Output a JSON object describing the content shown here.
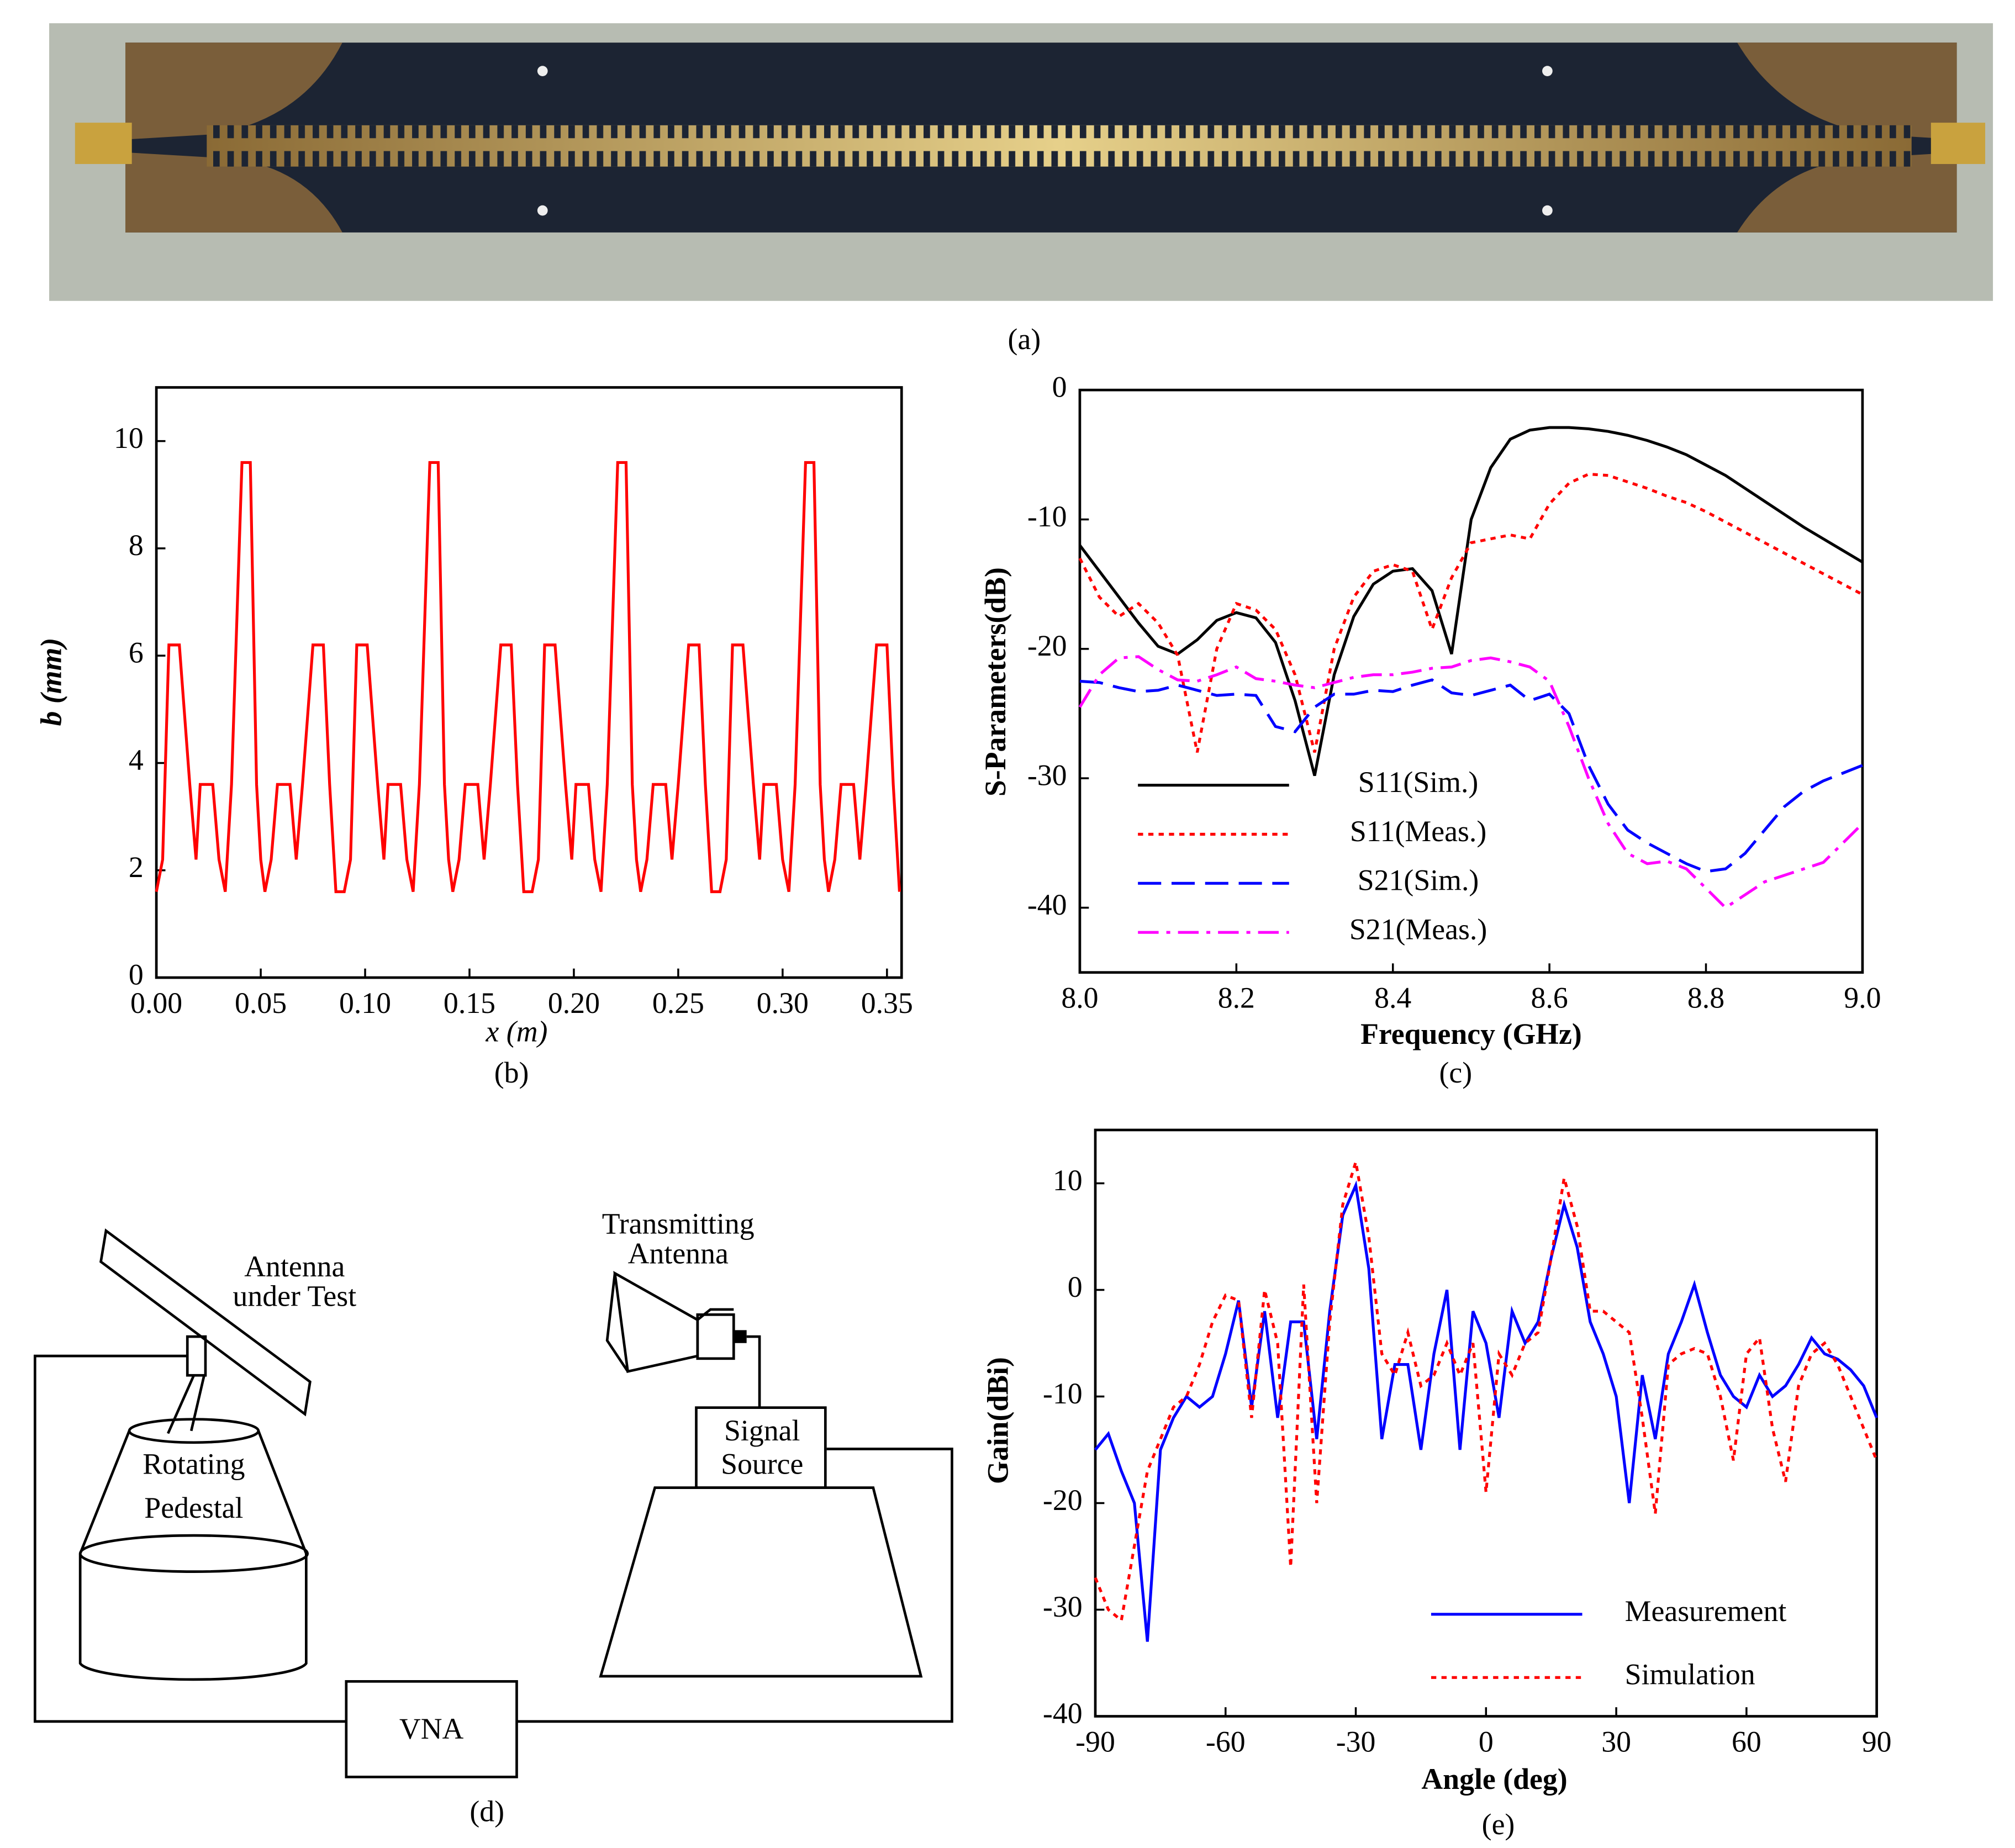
{
  "figure_a": {
    "caption": "(a)"
  },
  "chart_data": [
    {
      "type": "line",
      "caption": "(b)",
      "xlabel": "x (m)",
      "ylabel": "b (mm)",
      "x": [
        0,
        0.003,
        0.006,
        0.011,
        0.016,
        0.019,
        0.021,
        0.027,
        0.03,
        0.033,
        0.036,
        0.041,
        0.045,
        0.048,
        0.05,
        0.052,
        0.055,
        0.058,
        0.064,
        0.067,
        0.07,
        0.075,
        0.08,
        0.083,
        0.086,
        0.09,
        0.093,
        0.096,
        0.101,
        0.106,
        0.109,
        0.111,
        0.117,
        0.12,
        0.123,
        0.126,
        0.131,
        0.135,
        0.138,
        0.14,
        0.142,
        0.145,
        0.148,
        0.154,
        0.157,
        0.16,
        0.165,
        0.17,
        0.173,
        0.176,
        0.18,
        0.183,
        0.186,
        0.191,
        0.196,
        0.199,
        0.201,
        0.207,
        0.21,
        0.213,
        0.216,
        0.221,
        0.225,
        0.228,
        0.23,
        0.232,
        0.235,
        0.238,
        0.244,
        0.247,
        0.25,
        0.255,
        0.26,
        0.263,
        0.266,
        0.27,
        0.273,
        0.276,
        0.281,
        0.286,
        0.289,
        0.291,
        0.297,
        0.3,
        0.303,
        0.306,
        0.311,
        0.315,
        0.318,
        0.32,
        0.322,
        0.325,
        0.328,
        0.334,
        0.337,
        0.34,
        0.345,
        0.35,
        0.353,
        0.356
      ],
      "series": [
        {
          "color": "#ff0000",
          "style": "solid",
          "values": [
            1.6,
            2.2,
            6.2,
            6.2,
            3.6,
            2.2,
            3.6,
            3.6,
            2.2,
            1.6,
            3.6,
            9.6,
            9.6,
            3.6,
            2.2,
            1.6,
            2.2,
            3.6,
            3.6,
            2.2,
            3.6,
            6.2,
            6.2,
            3.6,
            1.6,
            1.6,
            2.2,
            6.2,
            6.2,
            3.6,
            2.2,
            3.6,
            3.6,
            2.2,
            1.6,
            3.6,
            9.6,
            9.6,
            3.6,
            2.2,
            1.6,
            2.2,
            3.6,
            3.6,
            2.2,
            3.6,
            6.2,
            6.2,
            3.6,
            1.6,
            1.6,
            2.2,
            6.2,
            6.2,
            3.6,
            2.2,
            3.6,
            3.6,
            2.2,
            1.6,
            3.6,
            9.6,
            9.6,
            3.6,
            2.2,
            1.6,
            2.2,
            3.6,
            3.6,
            2.2,
            3.6,
            6.2,
            6.2,
            3.6,
            1.6,
            1.6,
            2.2,
            6.2,
            6.2,
            3.6,
            2.2,
            3.6,
            3.6,
            2.2,
            1.6,
            3.6,
            9.6,
            9.6,
            3.6,
            2.2,
            1.6,
            2.2,
            3.6,
            3.6,
            2.2,
            3.6,
            6.2,
            6.2,
            3.6,
            1.6
          ]
        }
      ],
      "xlim": [
        0,
        0.357
      ],
      "ylim": [
        0,
        11
      ],
      "xticks": [
        {
          "value": 0,
          "label": "0.00"
        },
        0.05,
        {
          "value": 0.1,
          "label": "0.10"
        },
        0.15,
        {
          "value": 0.2,
          "label": "0.20"
        },
        0.25,
        {
          "value": 0.3,
          "label": "0.30"
        },
        0.35
      ],
      "yticks": [
        0,
        2,
        4,
        6,
        8,
        10
      ]
    },
    {
      "type": "line",
      "caption": "(c)",
      "xlabel": "Frequency (GHz)",
      "ylabel": "S-Parameters(dB)",
      "legend": "lower left",
      "x": [
        8,
        8.025,
        8.05,
        8.075,
        8.1,
        8.125,
        8.15,
        8.175,
        8.2,
        8.225,
        8.25,
        8.275,
        8.3,
        8.325,
        8.35,
        8.375,
        8.4,
        8.425,
        8.45,
        8.475,
        8.5,
        8.525,
        8.55,
        8.575,
        8.6,
        8.625,
        8.65,
        8.675,
        8.7,
        8.725,
        8.75,
        8.775,
        8.8,
        8.825,
        8.85,
        8.875,
        8.9,
        8.925,
        8.95,
        8.975,
        9
      ],
      "series": [
        {
          "name": "S11(Sim.)",
          "color": "#000000",
          "style": "solid",
          "values": [
            -12,
            -14,
            -16,
            -18,
            -19.8,
            -20.4,
            -19.3,
            -17.8,
            -17.2,
            -17.6,
            -19.5,
            -24,
            -29.8,
            -22,
            -17.5,
            -15,
            -14,
            -13.8,
            -15.5,
            -20.4,
            -10,
            -6,
            -3.8,
            -3.1,
            -2.9,
            -2.9,
            -3,
            -3.2,
            -3.5,
            -3.9,
            -4.4,
            -5,
            -5.8,
            -6.6,
            -7.6,
            -8.6,
            -9.6,
            -10.6,
            -11.5,
            -12.4,
            -13.3
          ]
        },
        {
          "name": "S11(Meas.)",
          "color": "#ff0000",
          "style": "dotted",
          "values": [
            -13,
            -16,
            -17.5,
            -16.5,
            -18,
            -20.5,
            -28,
            -20,
            -16.5,
            -17,
            -18.5,
            -22,
            -28,
            -20,
            -16,
            -14,
            -13.5,
            -14,
            -18.5,
            -14.5,
            -11.8,
            -11.5,
            -11.2,
            -11.5,
            -8.8,
            -7.2,
            -6.5,
            -6.6,
            -7.1,
            -7.6,
            -8.2,
            -8.7,
            -9.4,
            -10.2,
            -11,
            -11.8,
            -12.6,
            -13.4,
            -14.2,
            -15,
            -15.8
          ]
        },
        {
          "name": "S21(Sim.)",
          "color": "#0000ff",
          "style": "dashed",
          "values": [
            -22.5,
            -22.6,
            -23,
            -23.3,
            -23.2,
            -22.8,
            -23.2,
            -23.6,
            -23.5,
            -23.6,
            -26,
            -26.4,
            -24.5,
            -23.5,
            -23.5,
            -23.2,
            -23.3,
            -22.8,
            -22.4,
            -23.4,
            -23.6,
            -23.2,
            -22.8,
            -24,
            -23.5,
            -25,
            -29,
            -32,
            -34,
            -35,
            -35.8,
            -36.6,
            -37.2,
            -37,
            -35.8,
            -34,
            -32.2,
            -31,
            -30.2,
            -29.6,
            -29
          ]
        },
        {
          "name": "S21(Meas.)",
          "color": "#ff00ff",
          "style": "dashdot",
          "values": [
            -24.5,
            -22,
            -20.7,
            -20.6,
            -21.6,
            -22.4,
            -22.5,
            -22,
            -21.4,
            -22.3,
            -22.5,
            -22.8,
            -23,
            -22.6,
            -22.2,
            -22,
            -22,
            -21.8,
            -21.5,
            -21.4,
            -20.9,
            -20.7,
            -21,
            -21.4,
            -22.5,
            -26,
            -30,
            -33.5,
            -35.8,
            -36.6,
            -36.4,
            -37,
            -38.5,
            -40,
            -39,
            -38,
            -37.5,
            -37,
            -36.5,
            -35,
            -33.5
          ]
        }
      ],
      "xlim": [
        8,
        9
      ],
      "ylim": [
        -45,
        0
      ],
      "xticks": [
        {
          "value": 8,
          "label": "8.0"
        },
        8.2,
        8.4,
        8.6,
        8.8,
        {
          "value": 9,
          "label": "9.0"
        }
      ],
      "yticks": [
        0,
        -10,
        -20,
        -30,
        -40
      ]
    },
    {
      "type": "line",
      "caption": "(e)",
      "xlabel": "Angle (deg)",
      "ylabel": "Gain(dBi)",
      "legend": "lower right",
      "x": [
        -90,
        -87,
        -84,
        -81,
        -78,
        -75,
        -72,
        -69,
        -66,
        -63,
        -60,
        -57,
        -54,
        -51,
        -48,
        -45,
        -42,
        -39,
        -36,
        -33,
        -30,
        -27,
        -24,
        -21,
        -18,
        -15,
        -12,
        -9,
        -6,
        -3,
        0,
        3,
        6,
        9,
        12,
        15,
        18,
        21,
        24,
        27,
        30,
        33,
        36,
        39,
        42,
        45,
        48,
        51,
        54,
        57,
        60,
        63,
        66,
        69,
        72,
        75,
        78,
        81,
        84,
        87,
        90
      ],
      "series": [
        {
          "name": "Measurement",
          "color": "#0000ff",
          "style": "solid",
          "values": [
            -15,
            -13.5,
            -17,
            -20,
            -33,
            -15,
            -12,
            -10,
            -11,
            -10,
            -6,
            -1,
            -11,
            -2,
            -12,
            -3,
            -3,
            -14,
            -2,
            7,
            9.8,
            2,
            -14,
            -7,
            -7,
            -15,
            -6,
            0,
            -15,
            -2,
            -5,
            -12,
            -2,
            -5,
            -3,
            3,
            8,
            4,
            -3,
            -6,
            -10,
            -20,
            -8,
            -14,
            -6,
            -3,
            0.5,
            -4,
            -8,
            -10,
            -11,
            -8,
            -10,
            -9,
            -7,
            -4.5,
            -6,
            -6.5,
            -7.5,
            -9,
            -12
          ]
        },
        {
          "name": "Simulation",
          "color": "#ff0000",
          "style": "dotted",
          "values": [
            -27,
            -30,
            -31,
            -24,
            -17,
            -14,
            -11,
            -10,
            -7,
            -3,
            -0.5,
            -1,
            -12,
            0,
            -5,
            -26,
            0.5,
            -20,
            -3,
            8,
            12,
            5,
            -6,
            -8,
            -4,
            -9,
            -8,
            -5,
            -8,
            -5,
            -19,
            -6,
            -8,
            -5,
            -4,
            3,
            10.5,
            6,
            -2,
            -2,
            -3,
            -4,
            -12,
            -21,
            -7,
            -6,
            -5.5,
            -6,
            -10,
            -16,
            -6,
            -4.5,
            -13,
            -18,
            -9,
            -6,
            -5,
            -7,
            -10,
            -13,
            -16
          ]
        }
      ],
      "xlim": [
        -90,
        90
      ],
      "ylim": [
        -40,
        15
      ],
      "xticks": [
        -90,
        -60,
        -30,
        0,
        30,
        60,
        90
      ],
      "yticks": [
        -40,
        -30,
        -20,
        -10,
        0,
        10
      ]
    }
  ],
  "diagram": {
    "caption": "(d)",
    "antenna_under_test": [
      "Antenna",
      "under Test"
    ],
    "transmitting_antenna": [
      "Transmitting",
      "Antenna"
    ],
    "rotating_pedestal": [
      "Rotating",
      "Pedestal"
    ],
    "signal_source": [
      "Signal",
      "Source"
    ],
    "vna": "VNA"
  }
}
